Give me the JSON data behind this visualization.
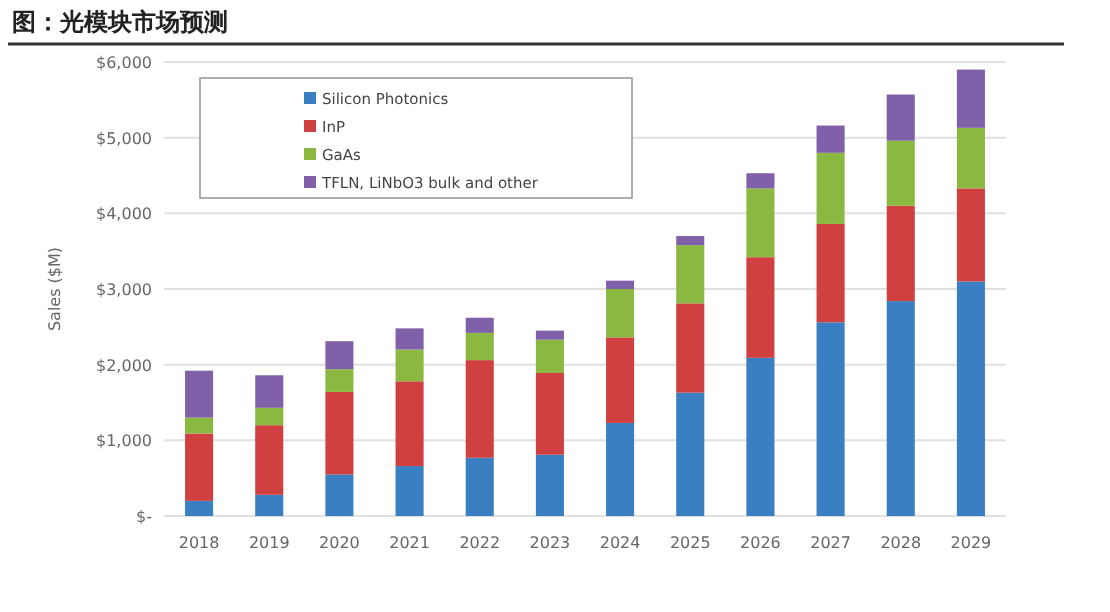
{
  "chart_data": {
    "type": "bar",
    "title": "图：光模块市场预测",
    "ylabel": "Sales ($M)",
    "categories": [
      "2018",
      "2019",
      "2020",
      "2021",
      "2022",
      "2023",
      "2024",
      "2025",
      "2026",
      "2027",
      "2028",
      "2029"
    ],
    "stacked": true,
    "series": [
      {
        "name": "Silicon Photonics",
        "color": "#3a7fc1",
        "values": [
          200,
          280,
          550,
          660,
          770,
          810,
          1230,
          1630,
          2090,
          2560,
          2840,
          3100
        ]
      },
      {
        "name": "InP",
        "color": "#d04040",
        "values": [
          890,
          920,
          1090,
          1120,
          1290,
          1080,
          1130,
          1180,
          1330,
          1300,
          1260,
          1230
        ]
      },
      {
        "name": "GaAs",
        "color": "#8ab840",
        "values": [
          210,
          230,
          300,
          420,
          360,
          440,
          640,
          770,
          910,
          940,
          860,
          800
        ]
      },
      {
        "name": "TFLN, LiNbO3 bulk and other",
        "color": "#8060a8",
        "values": [
          620,
          430,
          370,
          280,
          200,
          120,
          110,
          120,
          200,
          360,
          610,
          770
        ]
      }
    ],
    "ylim": [
      0,
      6000
    ],
    "yticks": [
      {
        "value": 0,
        "label": "$-"
      },
      {
        "value": 1000,
        "label": "$1,000"
      },
      {
        "value": 2000,
        "label": "$2,000"
      },
      {
        "value": 3000,
        "label": "$3,000"
      },
      {
        "value": 4000,
        "label": "$4,000"
      },
      {
        "value": 5000,
        "label": "$5,000"
      },
      {
        "value": 6000,
        "label": "$6,000"
      }
    ],
    "grid": "y",
    "legend": "top left"
  }
}
